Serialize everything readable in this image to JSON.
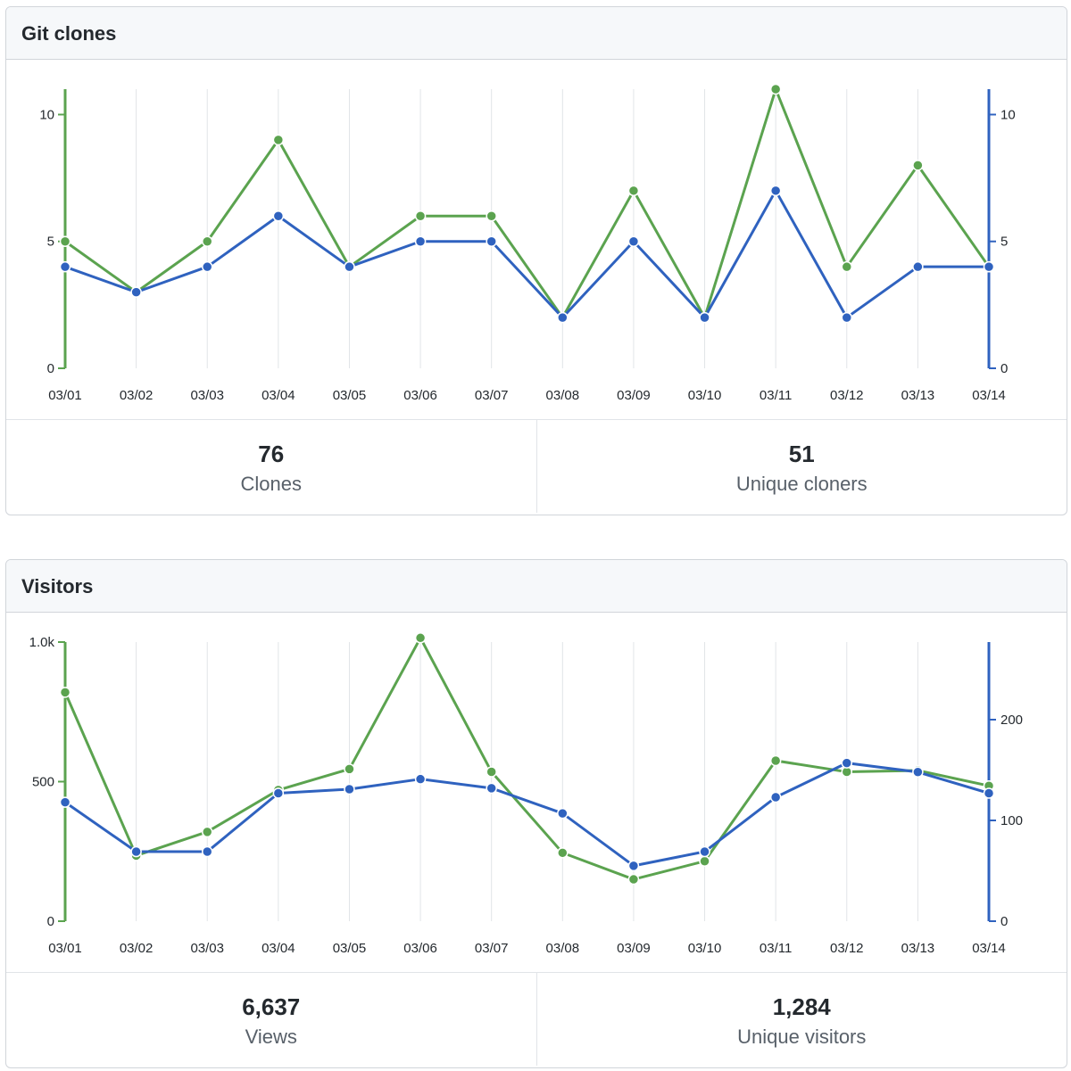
{
  "clones_panel": {
    "title": "Git clones",
    "stats": [
      {
        "value": "76",
        "label": "Clones"
      },
      {
        "value": "51",
        "label": "Unique cloners"
      }
    ]
  },
  "visitors_panel": {
    "title": "Visitors",
    "stats": [
      {
        "value": "6,637",
        "label": "Views"
      },
      {
        "value": "1,284",
        "label": "Unique visitors"
      }
    ]
  },
  "colors": {
    "green": "#5ba34f",
    "blue": "#2f62bf",
    "grid": "#e1e4e8"
  },
  "chart_data": [
    {
      "type": "line",
      "title": "Git clones",
      "x": [
        "03/01",
        "03/02",
        "03/03",
        "03/04",
        "03/05",
        "03/06",
        "03/07",
        "03/08",
        "03/09",
        "03/10",
        "03/11",
        "03/12",
        "03/13",
        "03/14"
      ],
      "left_axis": {
        "ticks": [
          0,
          5,
          10
        ],
        "tick_labels": [
          "0",
          "5",
          "10"
        ],
        "ylim": [
          0,
          11
        ]
      },
      "right_axis": {
        "ticks": [
          0,
          5,
          10
        ],
        "tick_labels": [
          "0",
          "5",
          "10"
        ],
        "ylim": [
          0,
          11
        ]
      },
      "series": [
        {
          "name": "Clones",
          "axis": "left",
          "color": "#5ba34f",
          "values": [
            5,
            3,
            5,
            9,
            4,
            6,
            6,
            2,
            7,
            2,
            11,
            4,
            8,
            4
          ]
        },
        {
          "name": "Unique cloners",
          "axis": "right",
          "color": "#2f62bf",
          "values": [
            4,
            3,
            4,
            6,
            4,
            5,
            5,
            2,
            5,
            2,
            7,
            2,
            4,
            4
          ]
        }
      ],
      "grid": "vertical"
    },
    {
      "type": "line",
      "title": "Visitors",
      "x": [
        "03/01",
        "03/02",
        "03/03",
        "03/04",
        "03/05",
        "03/06",
        "03/07",
        "03/08",
        "03/09",
        "03/10",
        "03/11",
        "03/12",
        "03/13",
        "03/14"
      ],
      "left_axis": {
        "ticks": [
          0,
          500,
          1000
        ],
        "tick_labels": [
          "0",
          "500",
          "1.0k"
        ],
        "ylim": [
          0,
          1000
        ]
      },
      "right_axis": {
        "ticks": [
          0,
          100,
          200
        ],
        "tick_labels": [
          "0",
          "100",
          "200"
        ],
        "ylim": [
          0,
          277
        ]
      },
      "series": [
        {
          "name": "Views",
          "axis": "left",
          "color": "#5ba34f",
          "values": [
            820,
            235,
            320,
            470,
            545,
            1015,
            535,
            245,
            150,
            215,
            575,
            535,
            540,
            485
          ]
        },
        {
          "name": "Unique visitors",
          "axis": "right",
          "color": "#2f62bf",
          "values": [
            118,
            69,
            69,
            127,
            131,
            141,
            132,
            107,
            55,
            69,
            123,
            157,
            148,
            127
          ]
        }
      ],
      "grid": "vertical"
    }
  ]
}
